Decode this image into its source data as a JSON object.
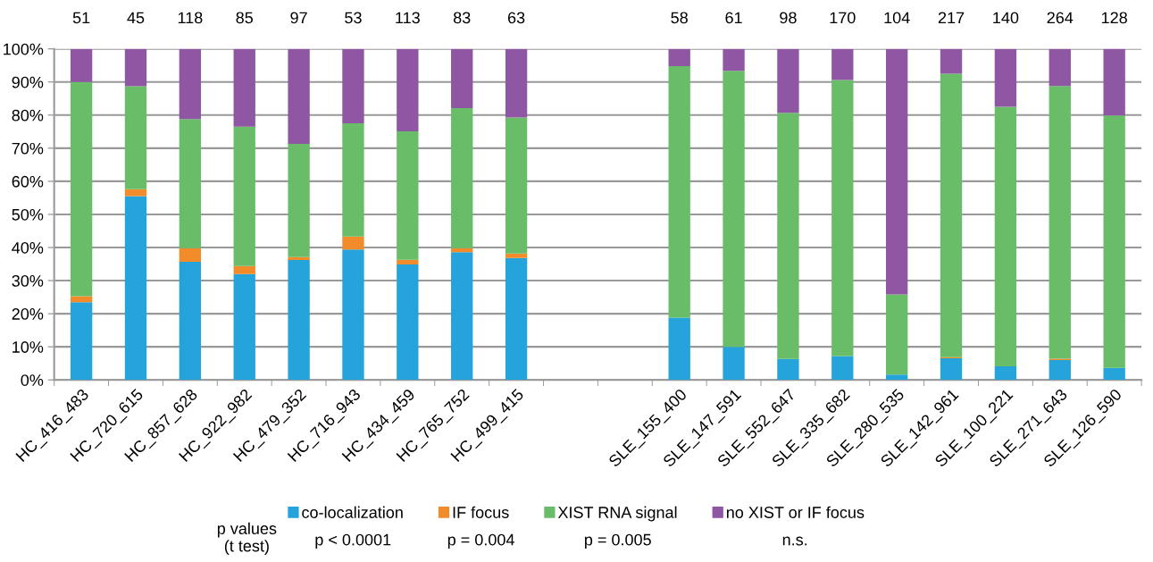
{
  "chart_data": {
    "type": "bar",
    "stacked": true,
    "categories": [
      "HC_416_483",
      "HC_720_615",
      "HC_857_628",
      "HC_922_982",
      "HC_479_352",
      "HC_716_943",
      "HC_434_459",
      "HC_765_752",
      "HC_499_415",
      null,
      null,
      "SLE_155_400",
      "SLE_147_591",
      "SLE_552_647",
      "SLE_335_682",
      "SLE_280_535",
      "SLE_142_961",
      "SLE_100_221",
      "SLE_271_643",
      "SLE_126_590"
    ],
    "series": [
      {
        "name": "co-localization",
        "color": "#25a3db",
        "values": [
          23.5,
          55.5,
          35.7,
          32,
          36.2,
          39.4,
          34.9,
          38.6,
          36.8,
          null,
          null,
          18.8,
          10,
          6.3,
          7.2,
          1.6,
          6.5,
          4.1,
          6,
          3.6
        ]
      },
      {
        "name": "IF focus",
        "color": "#f28b2a",
        "values": [
          1.8,
          2.1,
          4.1,
          2.4,
          0.9,
          3.9,
          1.4,
          1.2,
          1.4,
          null,
          null,
          0,
          0,
          0,
          0,
          0,
          0.4,
          0,
          0.4,
          0
        ]
      },
      {
        "name": "XIST RNA signal",
        "color": "#69bd69",
        "values": [
          64.7,
          31.1,
          39,
          42.1,
          34.2,
          34.2,
          38.8,
          42.3,
          41.1,
          null,
          null,
          76,
          83.4,
          74.4,
          83.4,
          24.2,
          85.6,
          78.4,
          82.4,
          76.3
        ]
      },
      {
        "name": "no XIST or IF focus",
        "color": "#8f56a3",
        "values": [
          10,
          11.3,
          21.2,
          23.5,
          28.7,
          22.5,
          24.9,
          17.9,
          20.7,
          null,
          null,
          5.2,
          6.6,
          19.3,
          9.4,
          74.2,
          7.5,
          17.5,
          11.2,
          20.1
        ]
      }
    ],
    "ylim": [
      0,
      100
    ],
    "yticks": [
      {
        "value": 0,
        "label": "0%"
      },
      {
        "value": 10,
        "label": "10%"
      },
      {
        "value": 20,
        "label": "20%"
      },
      {
        "value": 30,
        "label": "30%"
      },
      {
        "value": 40,
        "label": "40%"
      },
      {
        "value": 50,
        "label": "50%"
      },
      {
        "value": 60,
        "label": "60%"
      },
      {
        "value": 70,
        "label": "70%"
      },
      {
        "value": 80,
        "label": "80%"
      },
      {
        "value": 90,
        "label": "90%"
      },
      {
        "value": 100,
        "label": "100%"
      }
    ],
    "grid": "y",
    "legend": "bottom",
    "annotations": [
      "p values\n(t test)",
      "p < 0.0001",
      "p = 0.004",
      "p = 0.005",
      "n.s.",
      "51",
      "45",
      "118",
      "85",
      "97",
      "53",
      "113",
      "83",
      "63",
      "58",
      "61",
      "98",
      "170",
      "104",
      "217",
      "140",
      "264",
      "128"
    ]
  }
}
